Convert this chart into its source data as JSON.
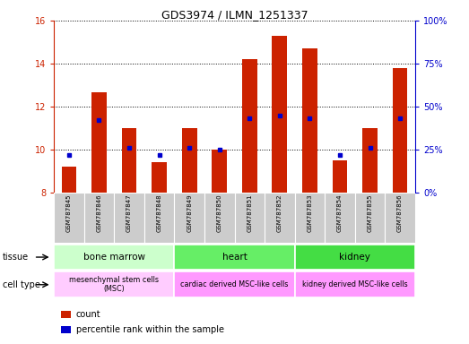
{
  "title": "GDS3974 / ILMN_1251337",
  "samples": [
    "GSM787845",
    "GSM787846",
    "GSM787847",
    "GSM787848",
    "GSM787849",
    "GSM787850",
    "GSM787851",
    "GSM787852",
    "GSM787853",
    "GSM787854",
    "GSM787855",
    "GSM787856"
  ],
  "count_values": [
    9.2,
    12.65,
    11.0,
    9.4,
    11.0,
    10.0,
    14.2,
    15.3,
    14.7,
    9.5,
    11.0,
    13.8
  ],
  "percentile_values": [
    22,
    42,
    26,
    22,
    26,
    25,
    43,
    45,
    43,
    22,
    26,
    43
  ],
  "ylim_left": [
    8,
    16
  ],
  "ylim_right": [
    0,
    100
  ],
  "yticks_left": [
    8,
    10,
    12,
    14,
    16
  ],
  "yticks_right": [
    0,
    25,
    50,
    75,
    100
  ],
  "bar_color": "#cc2200",
  "dot_color": "#0000cc",
  "bar_bottom": 8,
  "tissue_groups": [
    {
      "label": "bone marrow",
      "start": 0,
      "end": 4,
      "color": "#ccffcc"
    },
    {
      "label": "heart",
      "start": 4,
      "end": 8,
      "color": "#66ee66"
    },
    {
      "label": "kidney",
      "start": 8,
      "end": 12,
      "color": "#44dd44"
    }
  ],
  "cell_type_groups": [
    {
      "label": "mesenchymal stem cells\n(MSC)",
      "start": 0,
      "end": 4,
      "color": "#ffccff"
    },
    {
      "label": "cardiac derived MSC-like cells",
      "start": 4,
      "end": 8,
      "color": "#ff99ff"
    },
    {
      "label": "kidney derived MSC-like cells",
      "start": 8,
      "end": 12,
      "color": "#ff99ff"
    }
  ],
  "tissue_label": "tissue",
  "cell_type_label": "cell type",
  "legend_count_label": "count",
  "legend_pct_label": "percentile rank within the sample",
  "bar_width": 0.5,
  "background_color": "#ffffff",
  "tick_color_left": "#cc2200",
  "tick_color_right": "#0000cc",
  "sample_bg_color": "#cccccc",
  "sample_border_color": "#ffffff"
}
